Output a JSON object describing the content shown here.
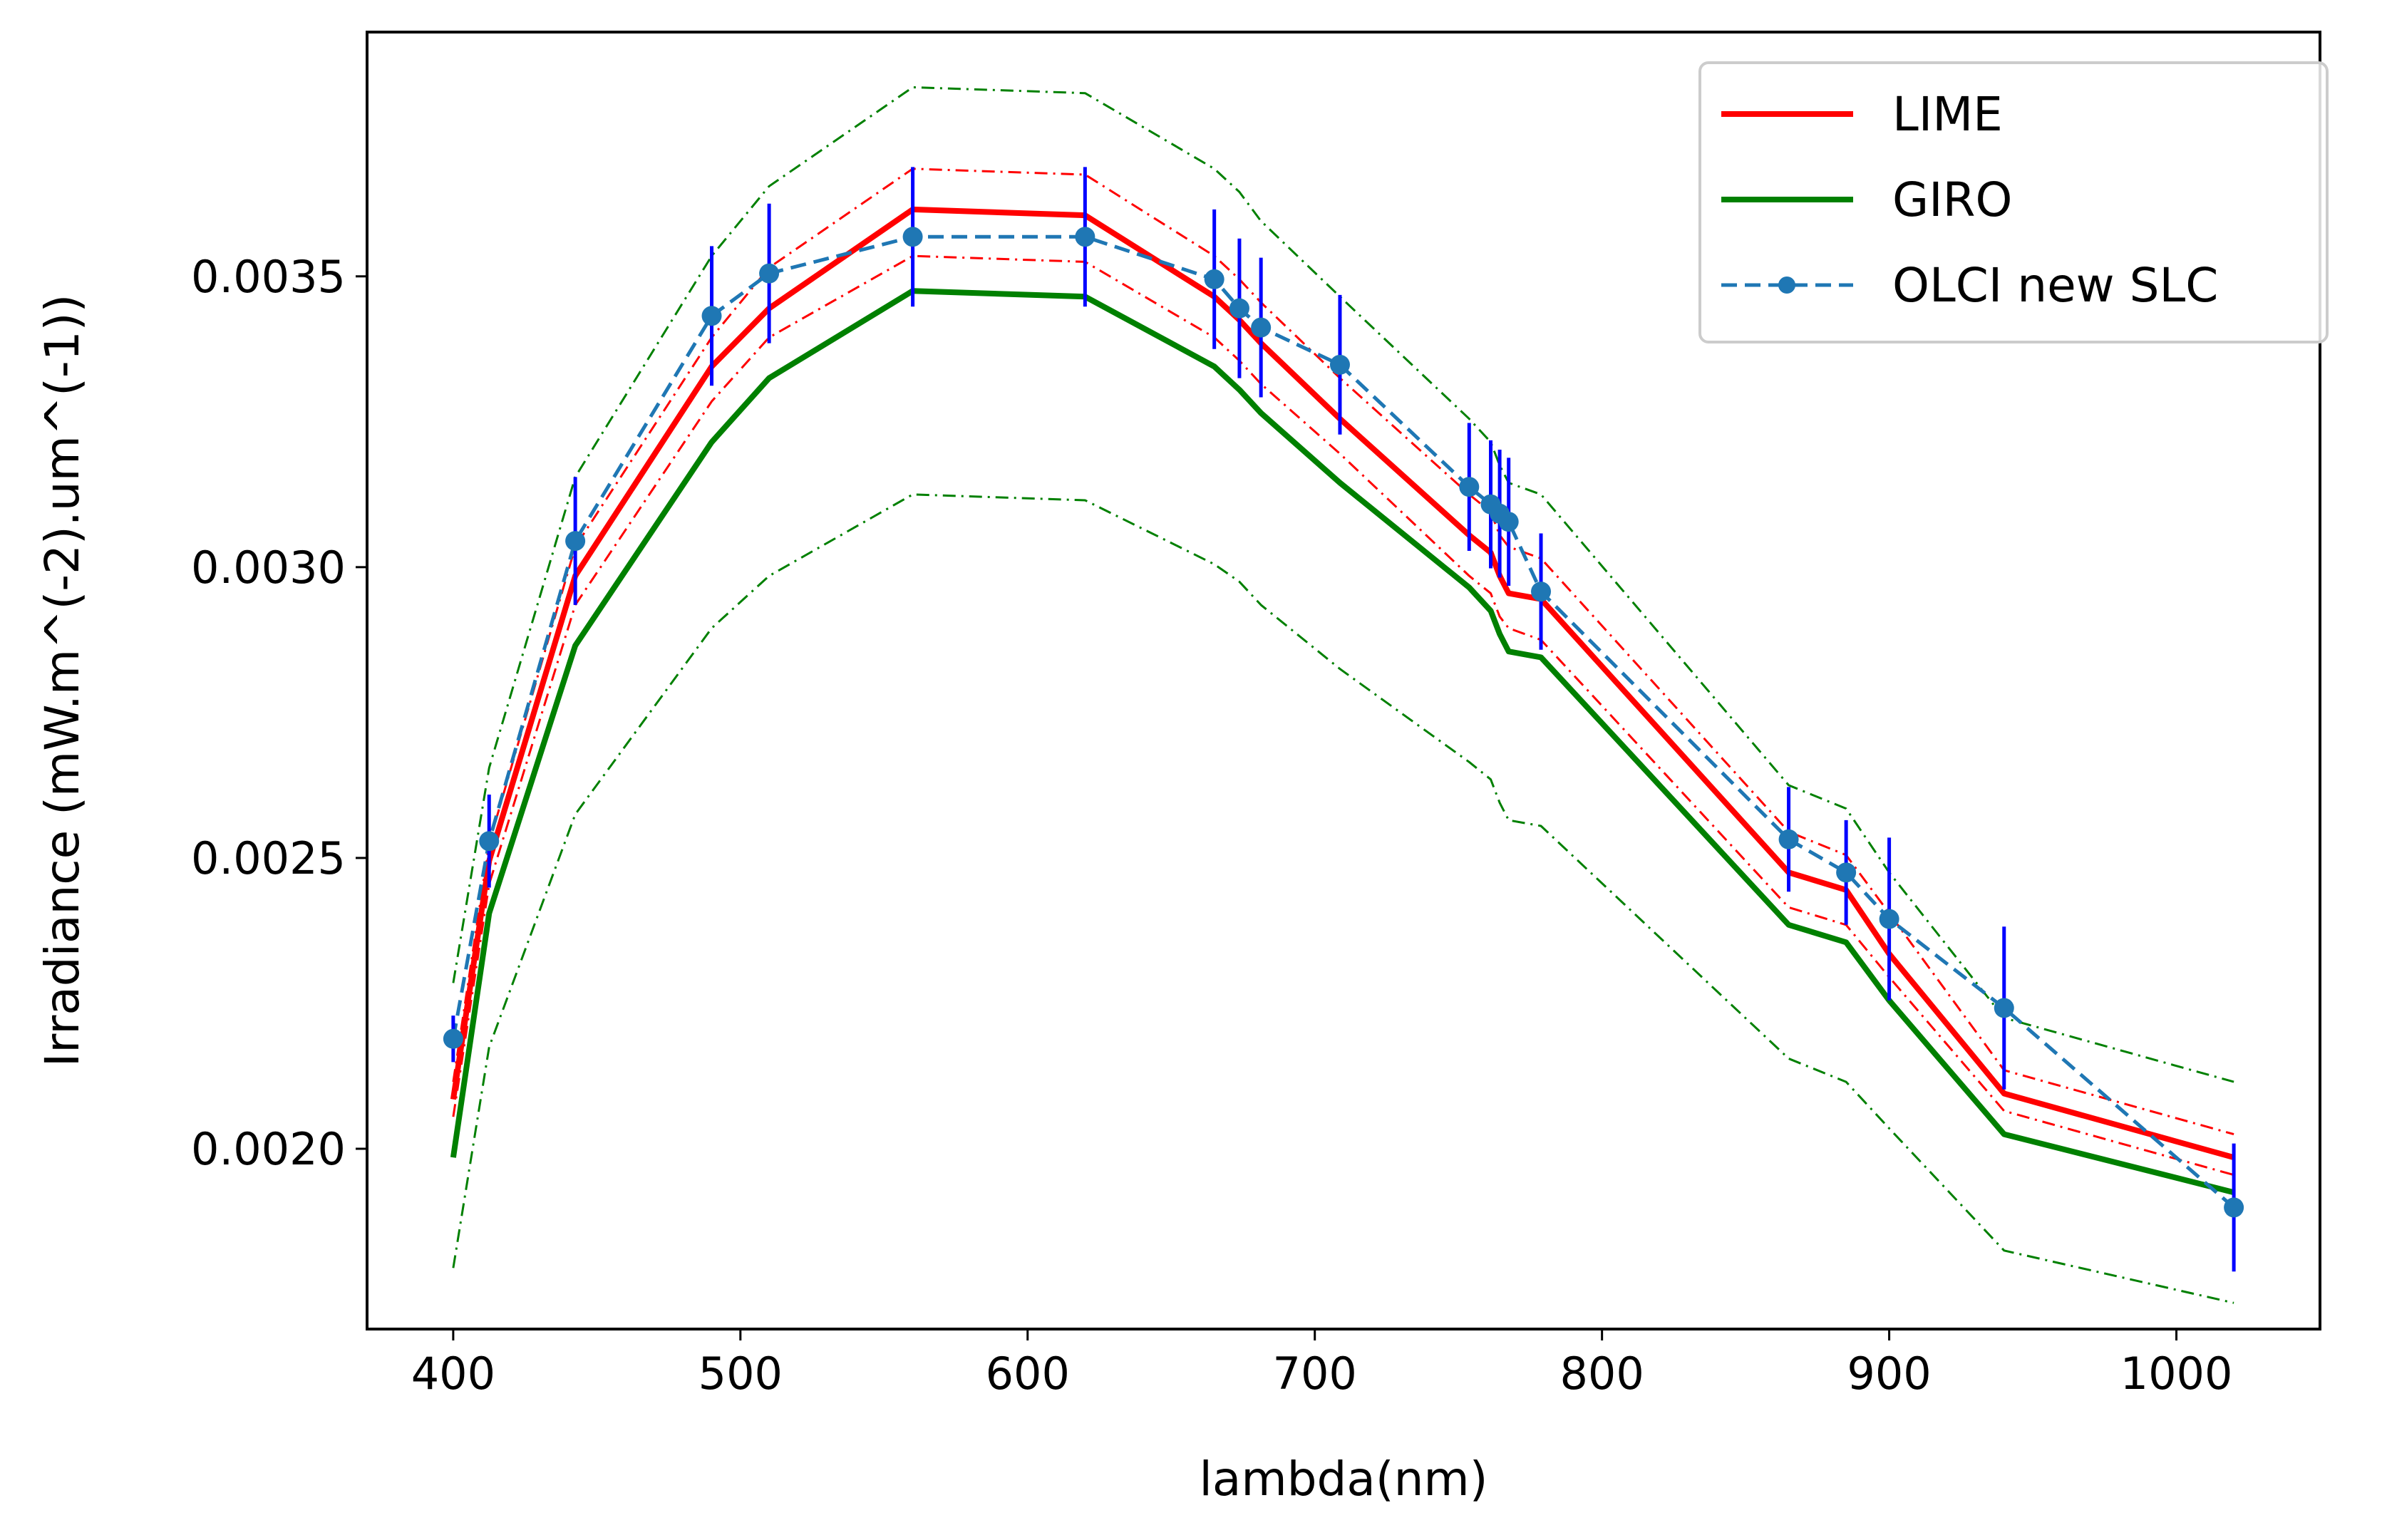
{
  "chart_data": {
    "type": "line",
    "title": "",
    "xlabel": "lambda(nm)",
    "ylabel": "Irradiance (mW.m^(-2).um^(-1))",
    "xlim": [
      370,
      1050
    ],
    "ylim": [
      0.00169,
      0.00392
    ],
    "x_ticks": [
      {
        "value": 400,
        "label": "400"
      },
      {
        "value": 500,
        "label": "500"
      },
      {
        "value": 600,
        "label": "600"
      },
      {
        "value": 700,
        "label": "700"
      },
      {
        "value": 800,
        "label": "800"
      },
      {
        "value": 900,
        "label": "900"
      },
      {
        "value": 1000,
        "label": "1000"
      }
    ],
    "y_ticks": [
      {
        "value": 0.002,
        "label": "0.0020"
      },
      {
        "value": 0.0025,
        "label": "0.0025"
      },
      {
        "value": 0.003,
        "label": "0.0030"
      },
      {
        "value": 0.0035,
        "label": "0.0035"
      }
    ],
    "legend_position": "top-right",
    "legend": [
      {
        "label": "LIME",
        "color": "#ff0000",
        "style": "solid"
      },
      {
        "label": "GIRO",
        "color": "#008000",
        "style": "solid"
      },
      {
        "label": "OLCI new SLC",
        "color": "#1f77b4",
        "style": "dashed-marker"
      }
    ],
    "x": [
      400,
      412.5,
      442.5,
      490,
      510,
      560,
      620,
      665,
      673.75,
      681.25,
      708.75,
      753.75,
      761.25,
      764.375,
      767.5,
      778.75,
      865,
      885,
      900,
      940,
      1020
    ],
    "series": [
      {
        "name": "LIME",
        "color": "#ff0000",
        "style": "solid",
        "in_legend": true,
        "values": [
          0.002085,
          0.002495,
          0.002985,
          0.003345,
          0.003445,
          0.003615,
          0.003605,
          0.003465,
          0.003425,
          0.003385,
          0.003255,
          0.003055,
          0.003025,
          0.002985,
          0.002955,
          0.002945,
          0.002475,
          0.002445,
          0.002335,
          0.002095,
          0.001985
        ]
      },
      {
        "name": "LIME upper bound",
        "color": "#ff0000",
        "style": "dashdot",
        "in_legend": false,
        "values": [
          0.002115,
          0.002525,
          0.003035,
          0.003395,
          0.003515,
          0.003685,
          0.003675,
          0.003535,
          0.003495,
          0.003455,
          0.003325,
          0.003125,
          0.003095,
          0.003055,
          0.003035,
          0.003015,
          0.002545,
          0.002505,
          0.002405,
          0.002135,
          0.002025
        ]
      },
      {
        "name": "LIME lower bound",
        "color": "#ff0000",
        "style": "dashdot",
        "in_legend": false,
        "values": [
          0.002055,
          0.002455,
          0.002935,
          0.003285,
          0.003395,
          0.003535,
          0.003525,
          0.003395,
          0.003355,
          0.003315,
          0.003195,
          0.002985,
          0.002955,
          0.002915,
          0.002895,
          0.002875,
          0.002415,
          0.002385,
          0.002295,
          0.002065,
          0.001955
        ]
      },
      {
        "name": "GIRO",
        "color": "#008000",
        "style": "solid",
        "in_legend": true,
        "values": [
          0.001985,
          0.002405,
          0.002865,
          0.003215,
          0.003325,
          0.003475,
          0.003465,
          0.003345,
          0.003305,
          0.003265,
          0.003145,
          0.002965,
          0.002925,
          0.002885,
          0.002855,
          0.002845,
          0.002385,
          0.002355,
          0.002255,
          0.002025,
          0.001925
        ]
      },
      {
        "name": "GIRO upper bound",
        "color": "#008000",
        "style": "dashdot",
        "in_legend": false,
        "values": [
          0.002285,
          0.002655,
          0.003155,
          0.003535,
          0.003655,
          0.003825,
          0.003815,
          0.003685,
          0.003645,
          0.003595,
          0.003465,
          0.003255,
          0.003215,
          0.003175,
          0.003145,
          0.003125,
          0.002625,
          0.002585,
          0.002475,
          0.002225,
          0.002115
        ]
      },
      {
        "name": "GIRO lower bound",
        "color": "#008000",
        "style": "dashdot",
        "in_legend": false,
        "values": [
          0.001795,
          0.002175,
          0.002575,
          0.002895,
          0.002985,
          0.003125,
          0.003115,
          0.003005,
          0.002975,
          0.002935,
          0.002825,
          0.002665,
          0.002635,
          0.002595,
          0.002565,
          0.002555,
          0.002155,
          0.002115,
          0.002035,
          0.001825,
          0.001735
        ]
      },
      {
        "name": "OLCI new SLC",
        "color": "#1f77b4",
        "style": "dashed-marker",
        "in_legend": true,
        "values": [
          0.002189,
          0.002529,
          0.003045,
          0.003432,
          0.003505,
          0.003568,
          0.003568,
          0.003495,
          0.003445,
          0.003412,
          0.003348,
          0.003138,
          0.003108,
          0.003092,
          0.003078,
          0.002958,
          0.002532,
          0.002475,
          0.002395,
          0.002242,
          0.001899
        ],
        "error": [
          4e-05,
          8e-05,
          0.00011,
          0.00012,
          0.00012,
          0.00012,
          0.00012,
          0.00012,
          0.00012,
          0.00012,
          0.00012,
          0.00011,
          0.00011,
          0.00011,
          0.00011,
          0.0001,
          9e-05,
          9e-05,
          0.00014,
          0.00014,
          0.00011
        ]
      }
    ]
  }
}
